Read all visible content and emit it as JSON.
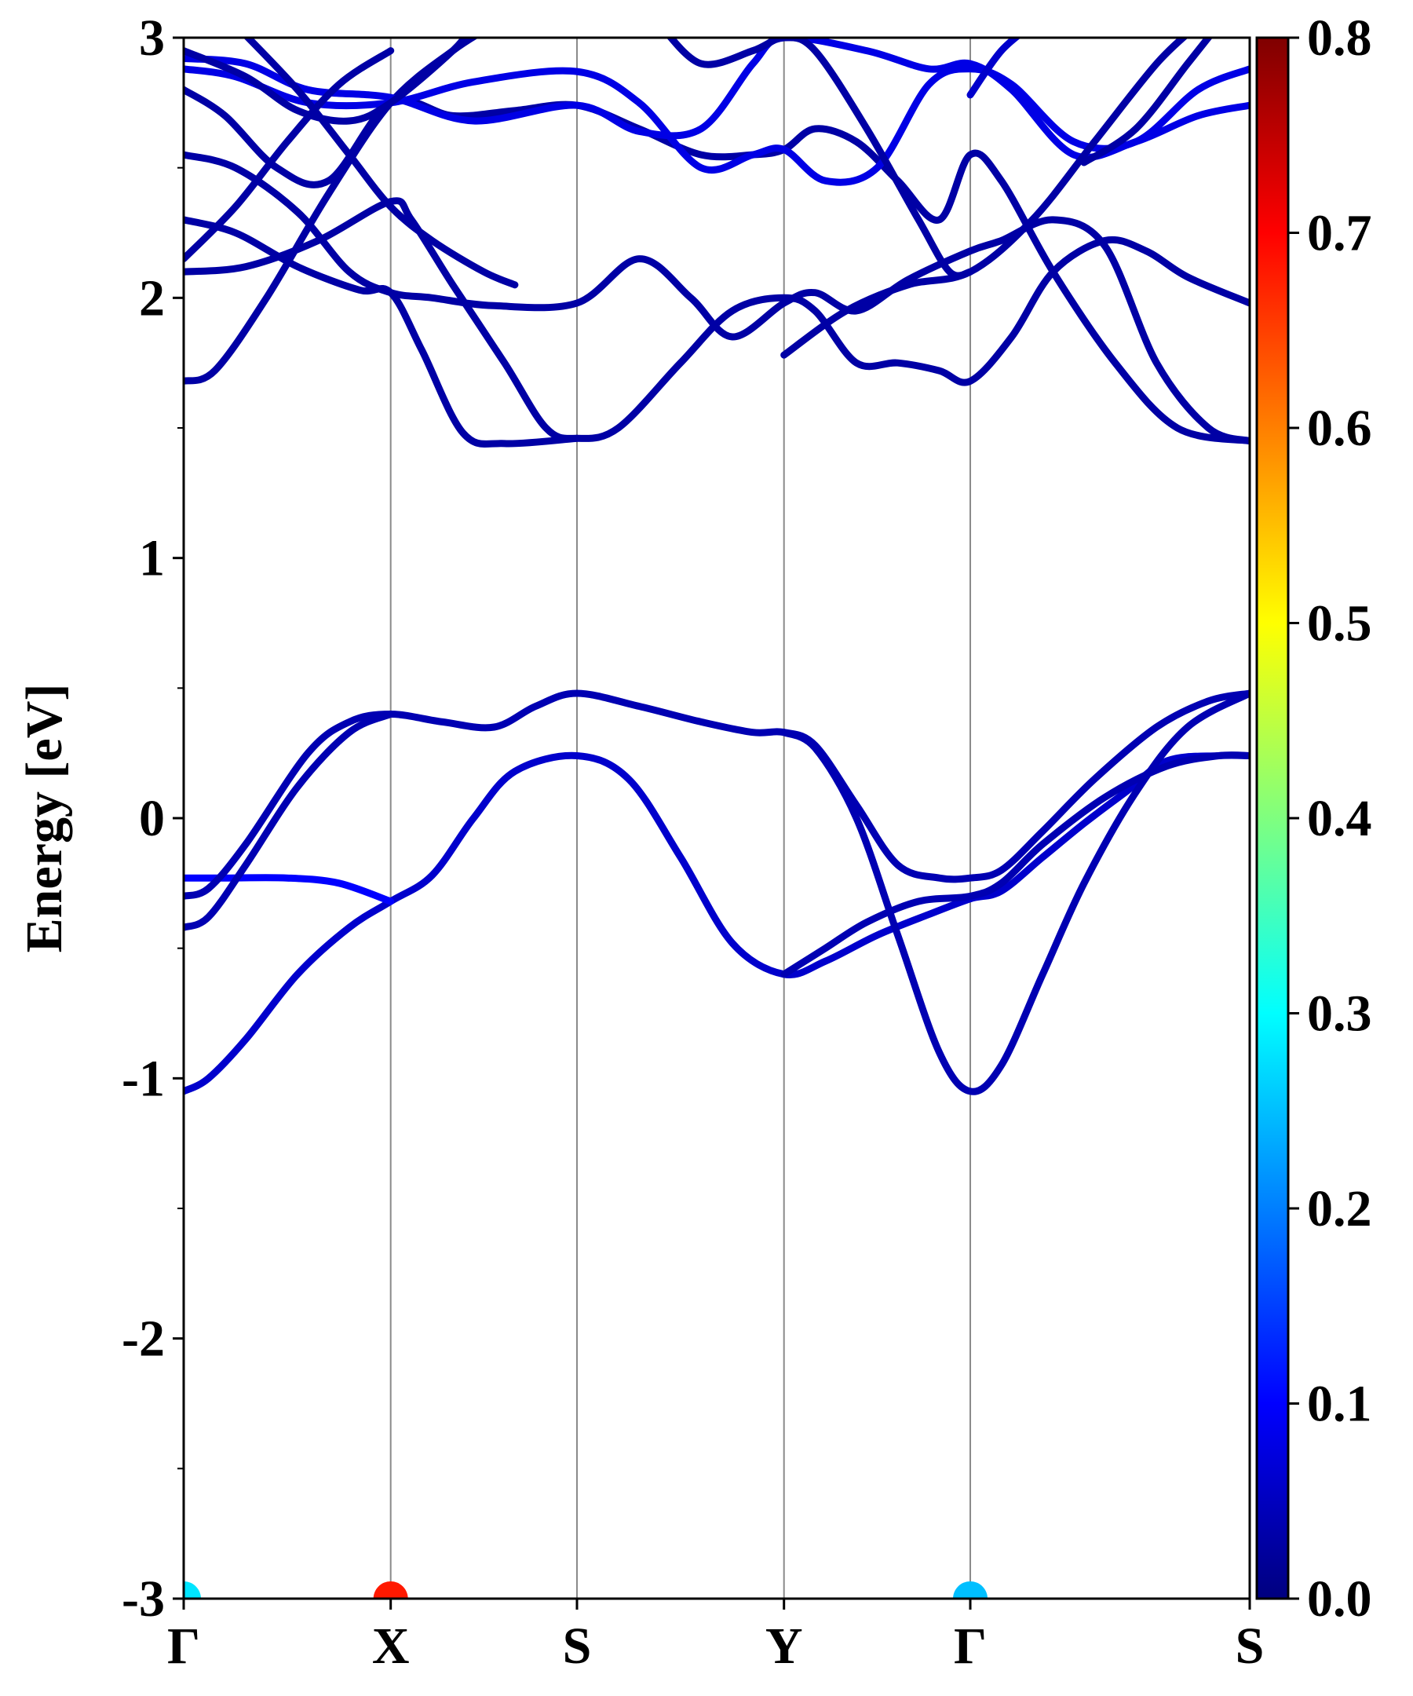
{
  "chart_data": {
    "type": "line",
    "title": "",
    "xlabel": "",
    "ylabel": "Energy [eV]",
    "ylim": [
      -3,
      3
    ],
    "y_ticks": [
      -3,
      -2,
      -1,
      0,
      1,
      2,
      3
    ],
    "y_tick_labels": [
      "-3",
      "-2",
      "-1",
      "0",
      "1",
      "2",
      "3"
    ],
    "y_minor_tick_step": 0.5,
    "kpath": {
      "labels": [
        "Γ",
        "X",
        "S",
        "Y",
        "Γ",
        "S"
      ],
      "positions": [
        0,
        1,
        1.9,
        2.9,
        3.8,
        5.15
      ],
      "xlim": [
        0,
        5.15
      ],
      "grid_vertical_at_kpoints": true
    },
    "colorbar": {
      "colormap": "jet",
      "range": [
        0.0,
        0.8
      ],
      "tick_labels": [
        "0.0",
        "0.1",
        "0.2",
        "0.3",
        "0.4",
        "0.5",
        "0.6",
        "0.7",
        "0.8"
      ],
      "colors": [
        "#00007f",
        "#0000ff",
        "#007fff",
        "#00ffff",
        "#7fff7f",
        "#ffff00",
        "#ff7f00",
        "#ff0000",
        "#7f0000"
      ]
    },
    "series": [
      {
        "weight": 0.06,
        "points": [
          [
            0,
            -1.05
          ],
          [
            0.12,
            -1.0
          ],
          [
            0.3,
            -0.85
          ],
          [
            0.55,
            -0.6
          ],
          [
            0.8,
            -0.42
          ],
          [
            1.0,
            -0.32
          ],
          [
            1.2,
            -0.22
          ],
          [
            1.4,
            0.0
          ],
          [
            1.6,
            0.18
          ],
          [
            1.9,
            0.24
          ],
          [
            2.15,
            0.15
          ],
          [
            2.4,
            -0.15
          ],
          [
            2.65,
            -0.48
          ],
          [
            2.9,
            -0.6
          ],
          [
            3.1,
            -0.55
          ],
          [
            3.35,
            -0.45
          ],
          [
            3.6,
            -0.37
          ],
          [
            3.8,
            -0.31
          ],
          [
            3.95,
            -0.28
          ],
          [
            4.15,
            -0.15
          ],
          [
            4.35,
            -0.02
          ],
          [
            4.55,
            0.1
          ],
          [
            4.75,
            0.22
          ],
          [
            5.0,
            0.24
          ],
          [
            5.15,
            0.24
          ]
        ]
      },
      {
        "weight": 0.1,
        "points": [
          [
            0,
            -0.23
          ],
          [
            0.2,
            -0.23
          ],
          [
            0.5,
            -0.23
          ],
          [
            0.75,
            -0.25
          ],
          [
            1.0,
            -0.32
          ]
        ]
      },
      {
        "weight": 0.04,
        "points": [
          [
            0,
            -0.3
          ],
          [
            0.12,
            -0.27
          ],
          [
            0.3,
            -0.1
          ],
          [
            0.6,
            0.25
          ],
          [
            0.8,
            0.37
          ],
          [
            1.0,
            0.4
          ],
          [
            1.25,
            0.37
          ],
          [
            1.5,
            0.35
          ],
          [
            1.7,
            0.43
          ],
          [
            1.9,
            0.48
          ],
          [
            2.2,
            0.43
          ],
          [
            2.5,
            0.37
          ],
          [
            2.75,
            0.33
          ],
          [
            2.9,
            0.33
          ],
          [
            3.05,
            0.28
          ],
          [
            3.25,
            0.05
          ],
          [
            3.45,
            -0.18
          ],
          [
            3.65,
            -0.23
          ],
          [
            3.8,
            -0.23
          ],
          [
            3.95,
            -0.2
          ],
          [
            4.15,
            -0.05
          ],
          [
            4.4,
            0.15
          ],
          [
            4.7,
            0.35
          ],
          [
            4.95,
            0.45
          ],
          [
            5.15,
            0.48
          ]
        ]
      },
      {
        "weight": 0.04,
        "points": [
          [
            0,
            -0.42
          ],
          [
            0.12,
            -0.38
          ],
          [
            0.3,
            -0.18
          ],
          [
            0.55,
            0.12
          ],
          [
            0.8,
            0.33
          ],
          [
            1.0,
            0.4
          ]
        ]
      },
      {
        "weight": 0.04,
        "points": [
          [
            2.9,
            -0.6
          ],
          [
            3.1,
            -0.5
          ],
          [
            3.3,
            -0.4
          ],
          [
            3.55,
            -0.32
          ],
          [
            3.8,
            -0.3
          ],
          [
            3.95,
            -0.25
          ],
          [
            4.15,
            -0.1
          ],
          [
            4.45,
            0.08
          ],
          [
            4.75,
            0.2
          ],
          [
            5.0,
            0.24
          ],
          [
            5.15,
            0.24
          ]
        ]
      },
      {
        "weight": 0.04,
        "points": [
          [
            2.9,
            0.33
          ],
          [
            3.05,
            0.27
          ],
          [
            3.25,
            0.0
          ],
          [
            3.45,
            -0.45
          ],
          [
            3.65,
            -0.9
          ],
          [
            3.8,
            -1.05
          ],
          [
            3.95,
            -0.95
          ],
          [
            4.15,
            -0.6
          ],
          [
            4.35,
            -0.25
          ],
          [
            4.6,
            0.1
          ],
          [
            4.85,
            0.35
          ],
          [
            5.15,
            0.48
          ]
        ]
      },
      {
        "weight": 0.03,
        "points": [
          [
            0,
            1.68
          ],
          [
            0.15,
            1.72
          ],
          [
            0.4,
            2.0
          ],
          [
            0.7,
            2.4
          ],
          [
            1.0,
            2.75
          ],
          [
            1.3,
            2.95
          ],
          [
            1.5,
            3.05
          ]
        ]
      },
      {
        "weight": 0.03,
        "points": [
          [
            0,
            2.1
          ],
          [
            0.3,
            2.12
          ],
          [
            0.65,
            2.22
          ],
          [
            1.0,
            2.37
          ],
          [
            1.1,
            2.3
          ],
          [
            1.3,
            2.05
          ],
          [
            1.55,
            1.75
          ],
          [
            1.75,
            1.5
          ],
          [
            1.9,
            1.46
          ],
          [
            2.1,
            1.5
          ],
          [
            2.4,
            1.75
          ],
          [
            2.65,
            1.95
          ],
          [
            2.9,
            2.0
          ],
          [
            3.05,
            1.95
          ],
          [
            3.25,
            1.75
          ],
          [
            3.45,
            1.75
          ],
          [
            3.65,
            1.72
          ],
          [
            3.8,
            1.68
          ],
          [
            4.0,
            1.85
          ],
          [
            4.2,
            2.1
          ],
          [
            4.45,
            2.22
          ],
          [
            4.65,
            2.18
          ],
          [
            4.85,
            2.08
          ],
          [
            5.15,
            1.98
          ]
        ]
      },
      {
        "weight": 0.03,
        "points": [
          [
            0,
            2.3
          ],
          [
            0.25,
            2.25
          ],
          [
            0.55,
            2.12
          ],
          [
            0.85,
            2.03
          ],
          [
            1.0,
            2.02
          ],
          [
            1.15,
            1.8
          ],
          [
            1.35,
            1.48
          ],
          [
            1.55,
            1.44
          ],
          [
            1.9,
            1.46
          ]
        ]
      },
      {
        "weight": 0.03,
        "points": [
          [
            0,
            2.55
          ],
          [
            0.25,
            2.5
          ],
          [
            0.55,
            2.33
          ],
          [
            0.8,
            2.1
          ],
          [
            1.0,
            2.02
          ],
          [
            1.2,
            2.0
          ],
          [
            1.5,
            1.97
          ],
          [
            1.9,
            1.98
          ],
          [
            2.2,
            2.15
          ],
          [
            2.45,
            2.0
          ],
          [
            2.65,
            1.85
          ],
          [
            2.9,
            1.98
          ],
          [
            3.05,
            2.02
          ],
          [
            3.25,
            1.95
          ],
          [
            3.5,
            2.07
          ],
          [
            3.8,
            2.18
          ],
          [
            3.95,
            2.22
          ],
          [
            4.2,
            2.3
          ],
          [
            4.45,
            2.2
          ],
          [
            4.7,
            1.75
          ],
          [
            4.95,
            1.5
          ],
          [
            5.15,
            1.45
          ]
        ]
      },
      {
        "weight": 0.03,
        "points": [
          [
            0,
            2.8
          ],
          [
            0.2,
            2.7
          ],
          [
            0.45,
            2.5
          ],
          [
            0.7,
            2.45
          ],
          [
            1.0,
            2.75
          ],
          [
            1.3,
            2.7
          ],
          [
            1.6,
            2.72
          ],
          [
            1.9,
            2.74
          ],
          [
            2.2,
            2.65
          ],
          [
            2.5,
            2.55
          ],
          [
            2.75,
            2.55
          ],
          [
            2.9,
            2.57
          ],
          [
            3.05,
            2.65
          ],
          [
            3.25,
            2.6
          ],
          [
            3.45,
            2.45
          ],
          [
            3.65,
            2.3
          ],
          [
            3.8,
            2.55
          ],
          [
            3.95,
            2.45
          ],
          [
            4.2,
            2.1
          ],
          [
            4.5,
            1.75
          ],
          [
            4.8,
            1.5
          ],
          [
            5.15,
            1.45
          ]
        ]
      },
      {
        "weight": 0.08,
        "points": [
          [
            0,
            2.88
          ],
          [
            0.25,
            2.85
          ],
          [
            0.6,
            2.75
          ],
          [
            1.0,
            2.75
          ],
          [
            1.4,
            2.83
          ],
          [
            1.9,
            2.87
          ],
          [
            2.2,
            2.75
          ],
          [
            2.5,
            2.5
          ],
          [
            2.75,
            2.55
          ],
          [
            2.9,
            2.57
          ],
          [
            3.1,
            2.45
          ],
          [
            3.35,
            2.5
          ],
          [
            3.6,
            2.82
          ],
          [
            3.8,
            2.88
          ],
          [
            4.0,
            2.82
          ],
          [
            4.3,
            2.6
          ],
          [
            4.6,
            2.6
          ],
          [
            4.9,
            2.8
          ],
          [
            5.15,
            2.88
          ]
        ]
      },
      {
        "weight": 0.08,
        "points": [
          [
            0,
            2.92
          ],
          [
            0.3,
            2.9
          ],
          [
            0.6,
            2.8
          ],
          [
            1.0,
            2.77
          ],
          [
            1.4,
            2.68
          ],
          [
            1.9,
            2.74
          ],
          [
            2.2,
            2.64
          ],
          [
            2.5,
            2.65
          ],
          [
            2.75,
            2.9
          ],
          [
            2.9,
            3.0
          ],
          [
            3.3,
            2.95
          ],
          [
            3.6,
            2.88
          ],
          [
            3.8,
            2.9
          ],
          [
            4.0,
            2.8
          ],
          [
            4.3,
            2.55
          ],
          [
            4.6,
            2.6
          ],
          [
            4.9,
            2.7
          ],
          [
            5.15,
            2.74
          ]
        ]
      },
      {
        "weight": 0.03,
        "points": [
          [
            0,
            2.95
          ],
          [
            0.3,
            2.85
          ],
          [
            0.55,
            2.72
          ],
          [
            0.8,
            2.68
          ],
          [
            1.0,
            2.75
          ],
          [
            1.3,
            2.95
          ],
          [
            1.4,
            3.05
          ]
        ]
      },
      {
        "weight": 0.03,
        "points": [
          [
            0,
            2.15
          ],
          [
            0.25,
            2.35
          ],
          [
            0.5,
            2.6
          ],
          [
            0.75,
            2.82
          ],
          [
            1.0,
            2.95
          ]
        ]
      },
      {
        "weight": 0.03,
        "points": [
          [
            0.25,
            3.05
          ],
          [
            0.55,
            2.8
          ],
          [
            0.8,
            2.55
          ],
          [
            1.0,
            2.35
          ],
          [
            1.2,
            2.22
          ],
          [
            1.45,
            2.1
          ],
          [
            1.6,
            2.05
          ]
        ]
      },
      {
        "weight": 0.03,
        "points": [
          [
            2.9,
            1.78
          ],
          [
            3.2,
            1.95
          ],
          [
            3.5,
            2.05
          ],
          [
            3.8,
            2.1
          ],
          [
            4.1,
            2.3
          ],
          [
            4.4,
            2.6
          ],
          [
            4.7,
            2.9
          ],
          [
            4.9,
            3.05
          ]
        ]
      },
      {
        "weight": 0.03,
        "points": [
          [
            2.3,
            3.05
          ],
          [
            2.5,
            2.9
          ],
          [
            2.75,
            2.95
          ],
          [
            2.9,
            3.0
          ],
          [
            3.05,
            2.95
          ],
          [
            3.3,
            2.65
          ],
          [
            3.55,
            2.3
          ],
          [
            3.7,
            2.1
          ],
          [
            3.8,
            2.1
          ]
        ]
      },
      {
        "weight": 0.06,
        "points": [
          [
            3.8,
            2.78
          ],
          [
            3.95,
            2.95
          ],
          [
            4.1,
            3.05
          ]
        ]
      },
      {
        "weight": 0.03,
        "points": [
          [
            4.35,
            2.52
          ],
          [
            4.6,
            2.65
          ],
          [
            4.85,
            2.9
          ],
          [
            5.0,
            3.05
          ]
        ]
      }
    ],
    "markers": [
      {
        "x": 0,
        "y": -3,
        "weight": 0.28
      },
      {
        "x": 1.0,
        "y": -3,
        "weight": 0.68
      },
      {
        "x": 3.8,
        "y": -3,
        "weight": 0.25
      }
    ]
  }
}
